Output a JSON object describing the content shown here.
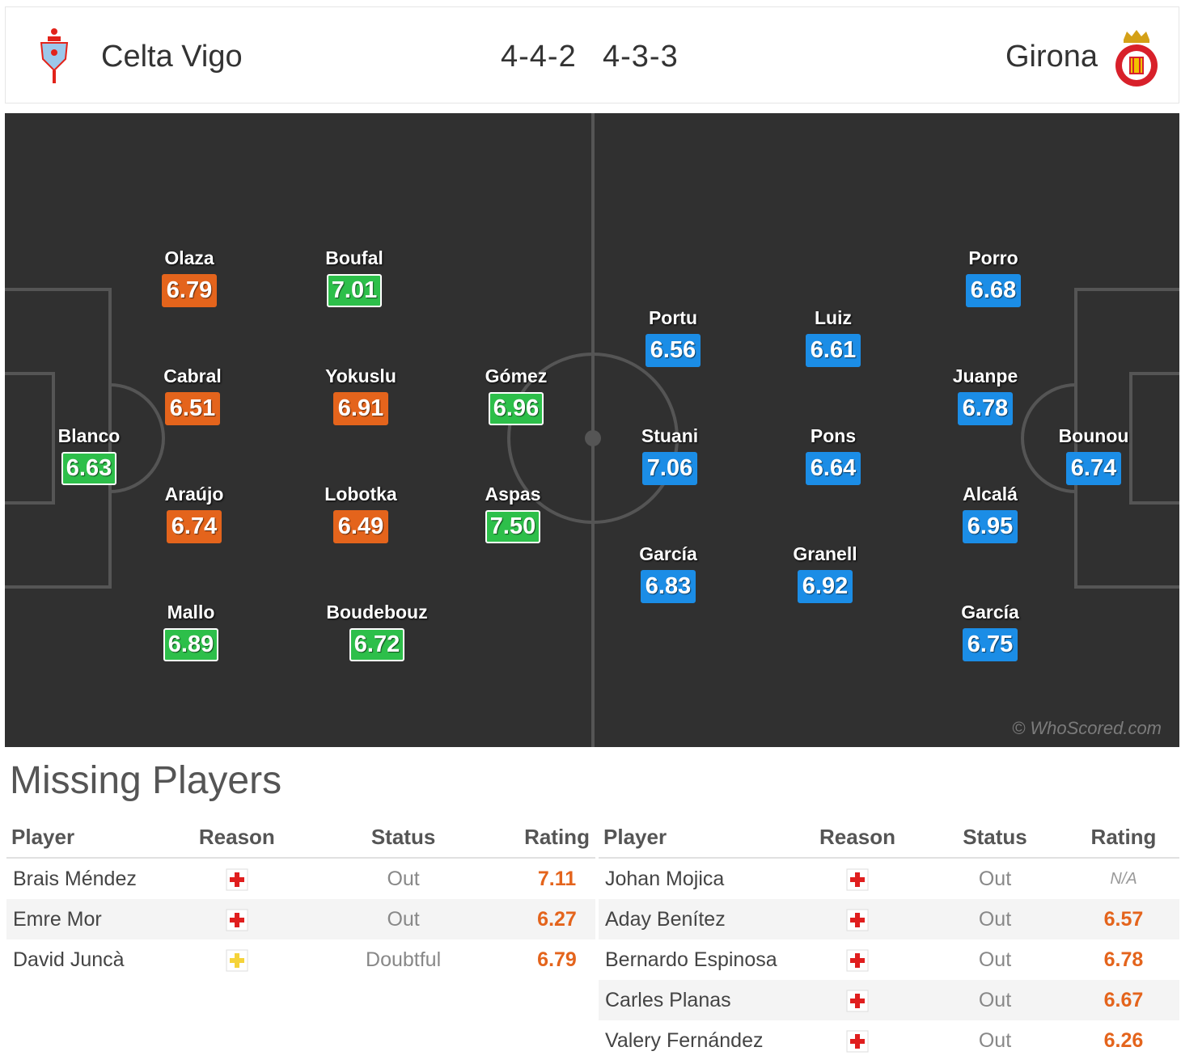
{
  "header": {
    "home_team": "Celta Vigo",
    "away_team": "Girona",
    "home_formation": "4-4-2",
    "away_formation": "4-3-3"
  },
  "colors": {
    "orange": "#e4641c",
    "green": "#2dbf4a",
    "blue": "#1b8de6",
    "pitch": "#303030"
  },
  "pitch": {
    "watermark": "© WhoScored.com",
    "home_players": [
      {
        "name": "Blanco",
        "rating": "6.63",
        "color": "green"
      },
      {
        "name": "Olaza",
        "rating": "6.79",
        "color": "orange"
      },
      {
        "name": "Cabral",
        "rating": "6.51",
        "color": "orange"
      },
      {
        "name": "Araújo",
        "rating": "6.74",
        "color": "orange"
      },
      {
        "name": "Mallo",
        "rating": "6.89",
        "color": "green"
      },
      {
        "name": "Boufal",
        "rating": "7.01",
        "color": "green"
      },
      {
        "name": "Yokuslu",
        "rating": "6.91",
        "color": "orange"
      },
      {
        "name": "Lobotka",
        "rating": "6.49",
        "color": "orange"
      },
      {
        "name": "Boudebouz",
        "rating": "6.72",
        "color": "green"
      },
      {
        "name": "Gómez",
        "rating": "6.96",
        "color": "green"
      },
      {
        "name": "Aspas",
        "rating": "7.50",
        "color": "green"
      }
    ],
    "away_players": [
      {
        "name": "Portu",
        "rating": "6.56",
        "color": "blue"
      },
      {
        "name": "Stuani",
        "rating": "7.06",
        "color": "blue"
      },
      {
        "name": "García",
        "rating": "6.83",
        "color": "blue"
      },
      {
        "name": "Luiz",
        "rating": "6.61",
        "color": "blue"
      },
      {
        "name": "Pons",
        "rating": "6.64",
        "color": "blue"
      },
      {
        "name": "Granell",
        "rating": "6.92",
        "color": "blue"
      },
      {
        "name": "Porro",
        "rating": "6.68",
        "color": "blue"
      },
      {
        "name": "Juanpe",
        "rating": "6.78",
        "color": "blue"
      },
      {
        "name": "Alcalá",
        "rating": "6.95",
        "color": "blue"
      },
      {
        "name": "García",
        "rating": "6.75",
        "color": "blue"
      },
      {
        "name": "Bounou",
        "rating": "6.74",
        "color": "blue"
      }
    ]
  },
  "missing": {
    "title": "Missing Players",
    "columns": [
      "Player",
      "Reason",
      "Status",
      "Rating"
    ],
    "home": [
      {
        "player": "Brais Méndez",
        "reason_icon": "injury-red-cross-icon",
        "status": "Out",
        "rating": "7.11"
      },
      {
        "player": "Emre Mor",
        "reason_icon": "injury-red-cross-icon",
        "status": "Out",
        "rating": "6.27"
      },
      {
        "player": "David Juncà",
        "reason_icon": "doubtful-yellow-cross-icon",
        "status": "Doubtful",
        "rating": "6.79"
      }
    ],
    "away": [
      {
        "player": "Johan Mojica",
        "reason_icon": "injury-red-cross-icon",
        "status": "Out",
        "rating": "N/A"
      },
      {
        "player": "Aday Benítez",
        "reason_icon": "injury-red-cross-icon",
        "status": "Out",
        "rating": "6.57"
      },
      {
        "player": "Bernardo Espinosa",
        "reason_icon": "injury-red-cross-icon",
        "status": "Out",
        "rating": "6.78"
      },
      {
        "player": "Carles Planas",
        "reason_icon": "injury-red-cross-icon",
        "status": "Out",
        "rating": "6.67"
      },
      {
        "player": "Valery Fernández",
        "reason_icon": "injury-red-cross-icon",
        "status": "Out",
        "rating": "6.26"
      }
    ]
  }
}
